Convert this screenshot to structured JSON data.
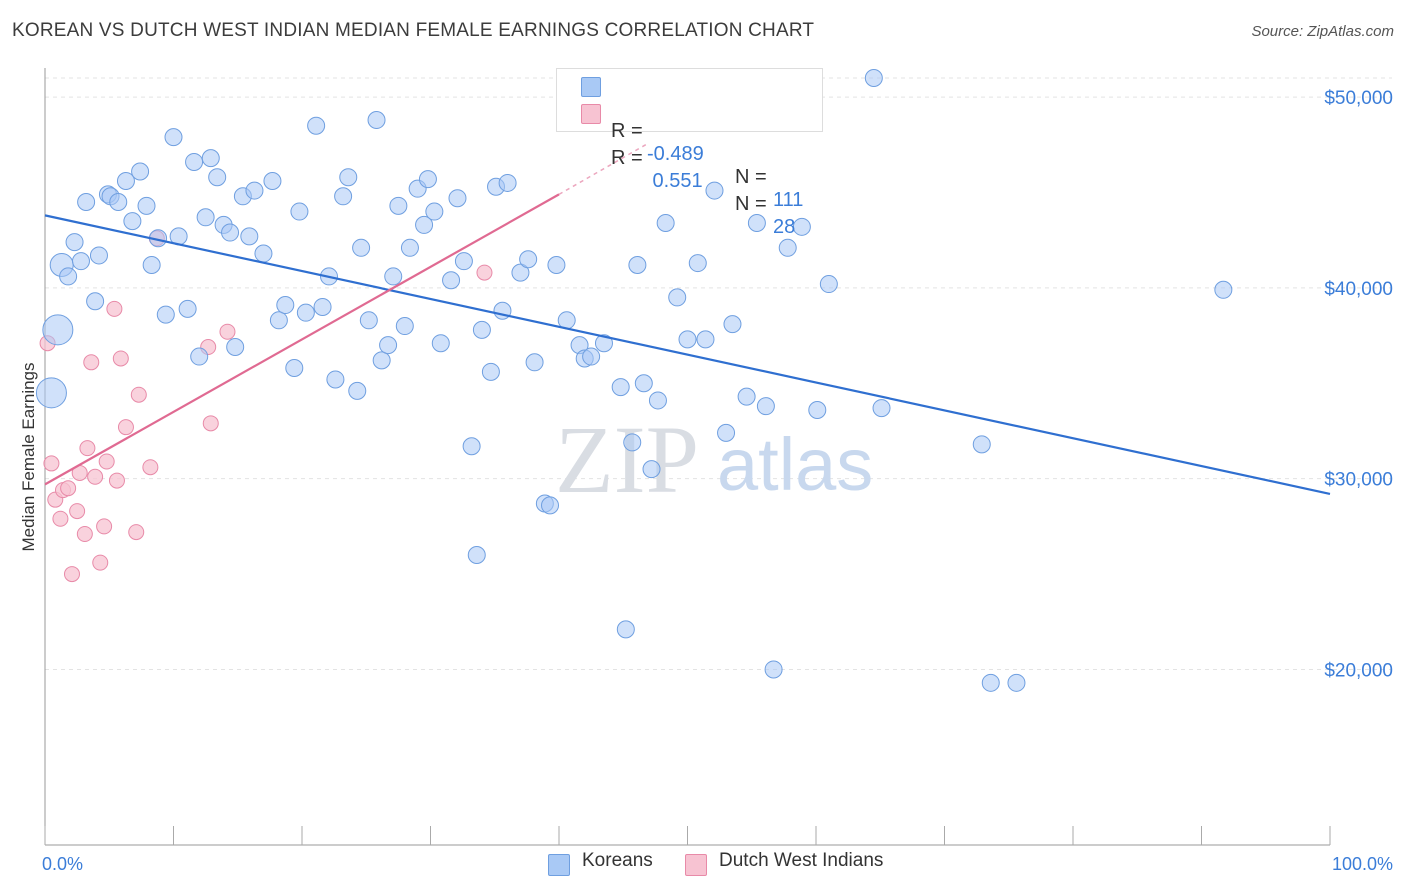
{
  "title": "KOREAN VS DUTCH WEST INDIAN MEDIAN FEMALE EARNINGS CORRELATION CHART",
  "source": "Source: ZipAtlas.com",
  "watermark": {
    "zip": "ZIP",
    "atlas": "atlas"
  },
  "legend": {
    "rows": [
      {
        "r_label": "R = ",
        "r_value": "-0.489",
        "n_label": "N = ",
        "n_value": "111",
        "color": "#a9c9f5"
      },
      {
        "r_label": "R = ",
        "r_value": " 0.551",
        "n_label": "N = ",
        "n_value": "28",
        "color": "#f7b8cb"
      }
    ]
  },
  "bottom_legend": {
    "koreans": "Koreans",
    "dutch": "Dutch West Indians"
  },
  "colors": {
    "blue_fill": "#a9c9f5",
    "blue_stroke": "#6f9fe0",
    "blue_line": "#2f6fd0",
    "pink_fill": "#f7c3d2",
    "pink_stroke": "#e88aa8",
    "pink_line": "#e06a92",
    "axis_text": "#3b7dd8",
    "grid": "#e3e3e3"
  },
  "chart_data": {
    "type": "scatter",
    "title": "KOREAN VS DUTCH WEST INDIAN MEDIAN FEMALE EARNINGS CORRELATION CHART",
    "xlabel": "",
    "ylabel": "Median Female Earnings",
    "xlim": [
      0,
      100
    ],
    "ylim": [
      10800,
      51000
    ],
    "x_tick_labels": [
      "0.0%",
      "100.0%"
    ],
    "y_ticks": [
      20000,
      30000,
      40000,
      50000
    ],
    "y_tick_labels": [
      "$20,000",
      "$30,000",
      "$40,000",
      "$50,000"
    ],
    "grid": true,
    "series": [
      {
        "name": "Koreans",
        "r": -0.489,
        "n": 111,
        "trend": {
          "x": [
            0,
            100
          ],
          "y": [
            43800,
            29200
          ]
        },
        "points": [
          [
            1,
            37800,
            3
          ],
          [
            0.5,
            34500,
            3
          ],
          [
            1.3,
            41200,
            2
          ],
          [
            1.8,
            40600,
            1
          ],
          [
            2.3,
            42400,
            1
          ],
          [
            3.2,
            44500,
            1
          ],
          [
            2.8,
            41400,
            1
          ],
          [
            4.2,
            41700,
            1
          ],
          [
            3.9,
            39300,
            1
          ],
          [
            4.9,
            44900,
            1
          ],
          [
            5.1,
            44800,
            1
          ],
          [
            5.7,
            44500,
            1
          ],
          [
            6.3,
            45600,
            1
          ],
          [
            6.8,
            43500,
            1
          ],
          [
            7.4,
            46100,
            1
          ],
          [
            7.9,
            44300,
            1
          ],
          [
            8.3,
            41200,
            1
          ],
          [
            8.8,
            42600,
            1
          ],
          [
            9.4,
            38600,
            1
          ],
          [
            10.0,
            47900,
            1
          ],
          [
            10.4,
            42700,
            1
          ],
          [
            11.1,
            38900,
            1
          ],
          [
            11.6,
            46600,
            1
          ],
          [
            12.0,
            36400,
            1
          ],
          [
            12.5,
            43700,
            1
          ],
          [
            12.9,
            46800,
            1
          ],
          [
            13.4,
            45800,
            1
          ],
          [
            13.9,
            43300,
            1
          ],
          [
            14.4,
            42900,
            1
          ],
          [
            14.8,
            36900,
            1
          ],
          [
            15.4,
            44800,
            1
          ],
          [
            15.9,
            42700,
            1
          ],
          [
            16.3,
            45100,
            1
          ],
          [
            17.0,
            41800,
            1
          ],
          [
            17.7,
            45600,
            1
          ],
          [
            18.2,
            38300,
            1
          ],
          [
            18.7,
            39100,
            1
          ],
          [
            19.4,
            35800,
            1
          ],
          [
            19.8,
            44000,
            1
          ],
          [
            20.3,
            38700,
            1
          ],
          [
            21.1,
            48500,
            1
          ],
          [
            21.6,
            39000,
            1
          ],
          [
            22.1,
            40600,
            1
          ],
          [
            22.6,
            35200,
            1
          ],
          [
            23.2,
            44800,
            1
          ],
          [
            23.6,
            45800,
            1
          ],
          [
            24.3,
            34600,
            1
          ],
          [
            24.6,
            42100,
            1
          ],
          [
            25.2,
            38300,
            1
          ],
          [
            25.8,
            48800,
            1
          ],
          [
            26.2,
            36200,
            1
          ],
          [
            26.7,
            37000,
            1
          ],
          [
            27.1,
            40600,
            1
          ],
          [
            27.5,
            44300,
            1
          ],
          [
            28.0,
            38000,
            1
          ],
          [
            28.4,
            42100,
            1
          ],
          [
            29.0,
            45200,
            1
          ],
          [
            29.5,
            43300,
            1
          ],
          [
            29.8,
            45700,
            1
          ],
          [
            30.3,
            44000,
            1
          ],
          [
            30.8,
            37100,
            1
          ],
          [
            31.6,
            40400,
            1
          ],
          [
            32.1,
            44700,
            1
          ],
          [
            32.6,
            41400,
            1
          ],
          [
            33.2,
            31700,
            1
          ],
          [
            34.0,
            37800,
            1
          ],
          [
            33.6,
            26000,
            1
          ],
          [
            34.7,
            35600,
            1
          ],
          [
            35.1,
            45300,
            1
          ],
          [
            35.6,
            38800,
            1
          ],
          [
            36.0,
            45500,
            1
          ],
          [
            37.0,
            40800,
            1
          ],
          [
            37.6,
            41500,
            1
          ],
          [
            38.1,
            36100,
            1
          ],
          [
            38.9,
            28700,
            1
          ],
          [
            39.3,
            28600,
            1
          ],
          [
            39.8,
            41200,
            1
          ],
          [
            40.6,
            38300,
            1
          ],
          [
            41.6,
            37000,
            1
          ],
          [
            42.0,
            36300,
            1
          ],
          [
            42.5,
            36400,
            1
          ],
          [
            43.5,
            37100,
            1
          ],
          [
            44.8,
            34800,
            1
          ],
          [
            45.2,
            22100,
            1
          ],
          [
            45.7,
            31900,
            1
          ],
          [
            46.1,
            41200,
            1
          ],
          [
            46.6,
            35000,
            1
          ],
          [
            47.2,
            30500,
            1
          ],
          [
            47.7,
            34100,
            1
          ],
          [
            48.3,
            43400,
            1
          ],
          [
            49.2,
            39500,
            1
          ],
          [
            50.0,
            37300,
            1
          ],
          [
            50.8,
            41300,
            1
          ],
          [
            51.4,
            37300,
            1
          ],
          [
            52.1,
            45100,
            1
          ],
          [
            53.0,
            32400,
            1
          ],
          [
            53.5,
            38100,
            1
          ],
          [
            54.6,
            34300,
            1
          ],
          [
            55.4,
            43400,
            1
          ],
          [
            56.1,
            33800,
            1
          ],
          [
            56.7,
            20000,
            1
          ],
          [
            57.8,
            42100,
            1
          ],
          [
            58.9,
            43200,
            1
          ],
          [
            60.1,
            33600,
            1
          ],
          [
            61.0,
            40200,
            1
          ],
          [
            65.1,
            33700,
            1
          ],
          [
            72.9,
            31800,
            1
          ],
          [
            73.6,
            19300,
            1
          ],
          [
            75.6,
            19300,
            1
          ],
          [
            91.7,
            39900,
            1
          ],
          [
            64.5,
            51000,
            1
          ]
        ]
      },
      {
        "name": "Dutch West Indians",
        "r": 0.551,
        "n": 28,
        "trend": {
          "x": [
            0,
            40
          ],
          "y": [
            29700,
            44900
          ]
        },
        "trend_dashed": {
          "x": [
            40,
            47
          ],
          "y": [
            44900,
            47600
          ]
        },
        "points": [
          [
            0.2,
            37100
          ],
          [
            0.5,
            30800
          ],
          [
            0.8,
            28900
          ],
          [
            1.2,
            27900
          ],
          [
            1.4,
            29400
          ],
          [
            1.8,
            29500
          ],
          [
            2.1,
            25000
          ],
          [
            2.5,
            28300
          ],
          [
            2.7,
            30300
          ],
          [
            3.1,
            27100
          ],
          [
            3.3,
            31600
          ],
          [
            3.6,
            36100
          ],
          [
            3.9,
            30100
          ],
          [
            4.3,
            25600
          ],
          [
            4.6,
            27500
          ],
          [
            4.8,
            30900
          ],
          [
            5.4,
            38900
          ],
          [
            5.6,
            29900
          ],
          [
            5.9,
            36300
          ],
          [
            6.3,
            32700
          ],
          [
            7.1,
            27200
          ],
          [
            7.3,
            34400
          ],
          [
            8.2,
            30600
          ],
          [
            8.7,
            42600
          ],
          [
            12.7,
            36900
          ],
          [
            12.9,
            32900
          ],
          [
            14.2,
            37700
          ],
          [
            34.2,
            40800
          ]
        ]
      }
    ]
  }
}
